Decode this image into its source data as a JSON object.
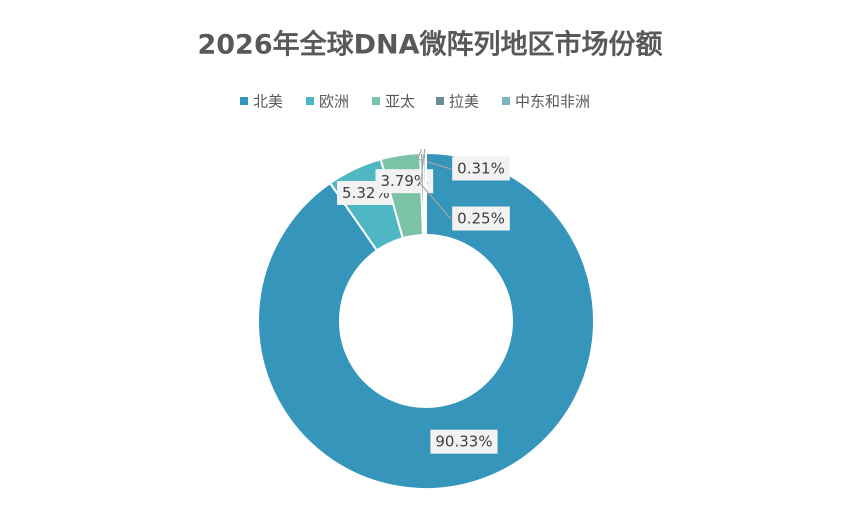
{
  "chart_data": {
    "type": "donut",
    "title": "2026年全球DNA微阵列地区市场份额",
    "categories": [
      "北美",
      "欧洲",
      "亚太",
      "拉美",
      "中东和非洲"
    ],
    "values": [
      90.33,
      5.32,
      3.79,
      0.31,
      0.25
    ],
    "value_labels": [
      "90.33%",
      "5.32%",
      "3.79%",
      "0.31%",
      "0.25%"
    ],
    "colors": [
      "#3595bb",
      "#4fb6c4",
      "#7cc2a6",
      "#6c8f95",
      "#7db4c6"
    ],
    "legend": "top"
  }
}
